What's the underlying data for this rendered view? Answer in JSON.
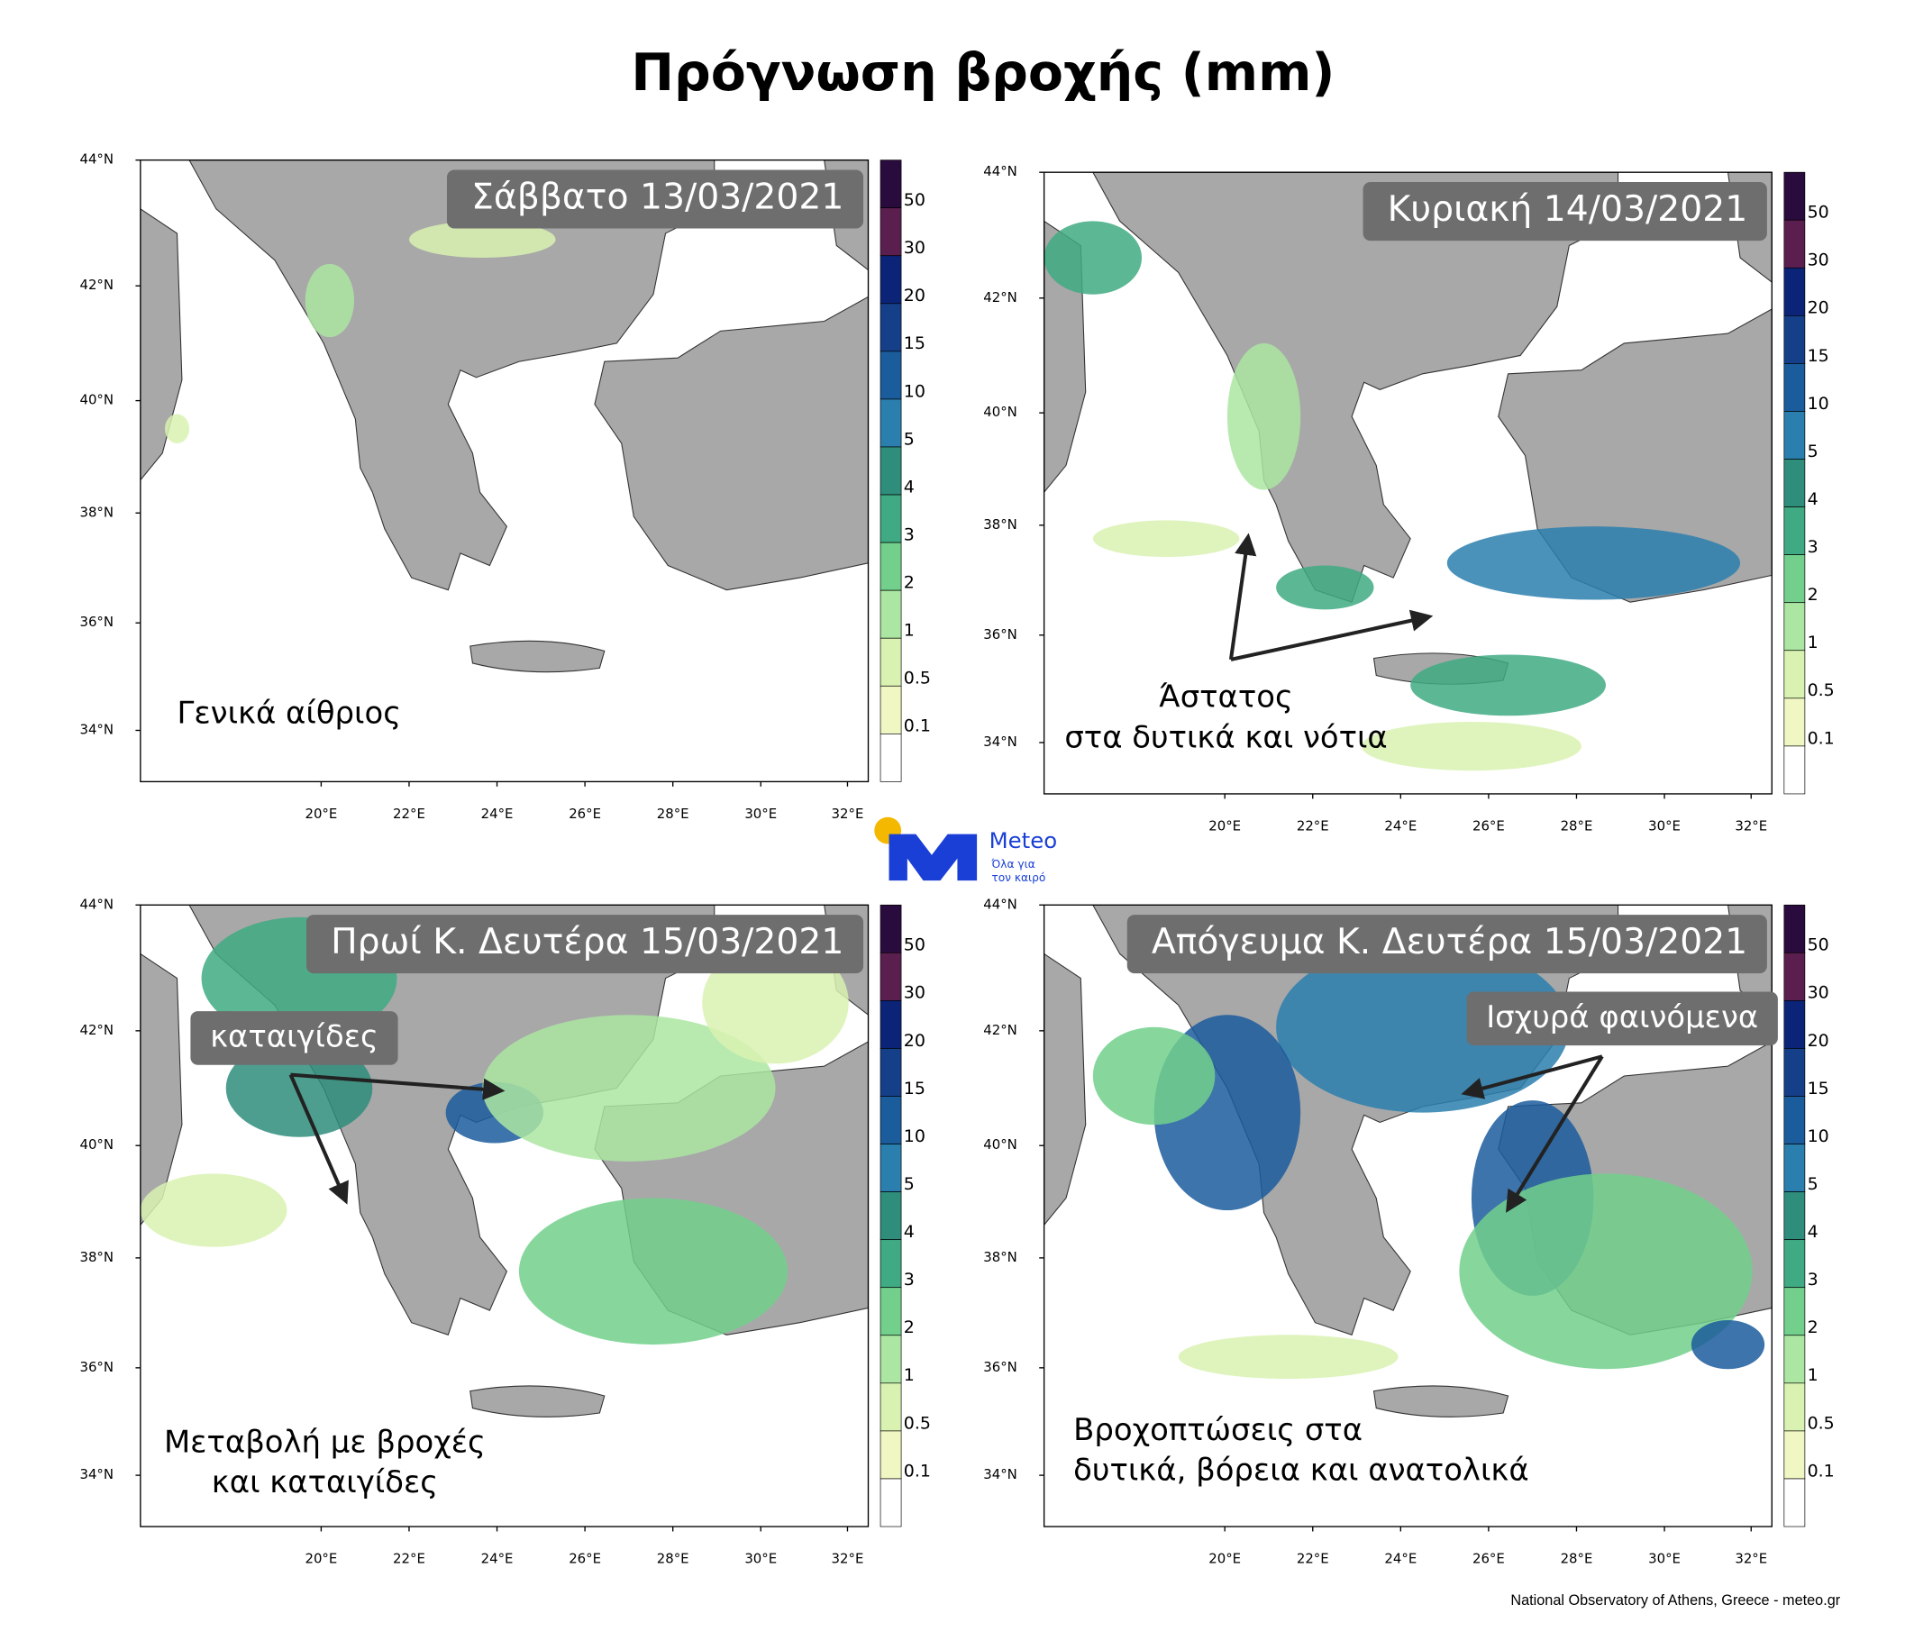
{
  "title": "Πρόγνωση βροχής (mm)",
  "axes": {
    "lat_labels": [
      "44°N",
      "42°N",
      "40°N",
      "38°N",
      "36°N",
      "34°N"
    ],
    "lon_labels": [
      "20°E",
      "22°E",
      "24°E",
      "26°E",
      "28°E",
      "30°E",
      "32°E"
    ]
  },
  "colorbar": {
    "labels": [
      50,
      30,
      20,
      15,
      10,
      5,
      4,
      3,
      2,
      1,
      0.5,
      0.1
    ],
    "colors": [
      "#2a0b3d",
      "#5b1f4f",
      "#0c2478",
      "#163f8a",
      "#1b5c9c",
      "#2b7fae",
      "#2f8d7c",
      "#3faa83",
      "#72d08c",
      "#abe6a2",
      "#d9f2b2",
      "#f1f7c2",
      "#ffffff"
    ]
  },
  "panels": [
    {
      "date": "Σάββατο 13/03/2021",
      "note": [
        "Γενικά αίθριος"
      ]
    },
    {
      "date": "Κυριακή 14/03/2021",
      "note": [
        "Άστατος",
        "στα δυτικά και νότια"
      ]
    },
    {
      "date": "Πρωί Κ. Δευτέρα 15/03/2021",
      "callout": "καταιγίδες",
      "note": [
        "Μεταβολή με βροχές",
        "και καταιγίδες"
      ]
    },
    {
      "date": "Απόγευμα Κ. Δευτέρα 15/03/2021",
      "callout": "Ισχυρά φαινόμενα",
      "note": [
        "Βροχοπτώσεις στα",
        "δυτικά, βόρεια και ανατολικά"
      ]
    }
  ],
  "logo": {
    "name": "Meteo",
    "tagline": [
      "Όλα για",
      "τον καιρό"
    ]
  },
  "footer": "National Observatory of Athens, Greece - meteo.gr"
}
